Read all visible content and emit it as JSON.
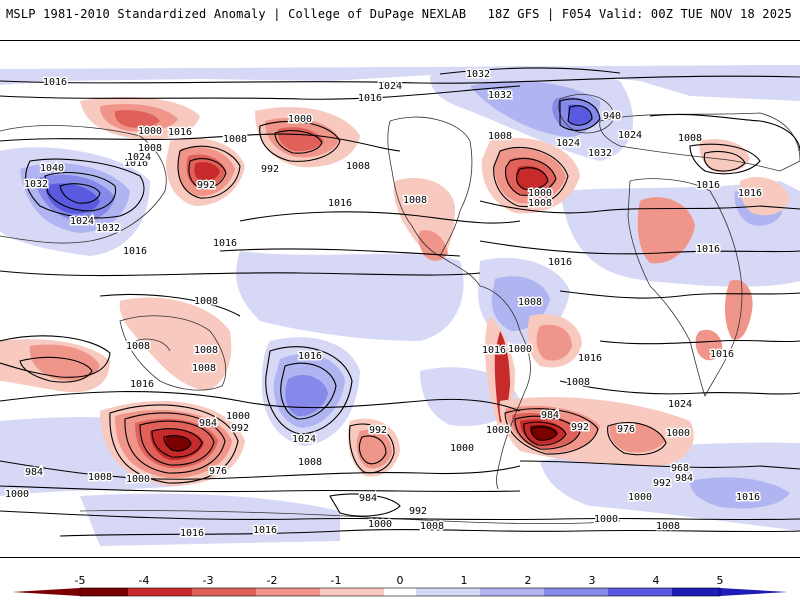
{
  "header": {
    "title": "MSLP 1981-2010 Standardized Anomaly | College of DuPage NEXLAB",
    "run_info": "18Z GFS | F054 Valid: 00Z TUE NOV 18 2025"
  },
  "colors": {
    "neg5": "#7a0000",
    "neg4": "#c62a2a",
    "neg3": "#e0605a",
    "neg2": "#f0958a",
    "neg1": "#f8c9be",
    "zero": "#ffffff",
    "pos1": "#d6d8f6",
    "pos2": "#b0b4f0",
    "pos3": "#8688ea",
    "pos4": "#5a5ae0",
    "pos5": "#1d1db8"
  },
  "colorbar": {
    "ticks": [
      "-5",
      "-4",
      "-3",
      "-2",
      "-1",
      "0",
      "1",
      "2",
      "3",
      "4",
      "5"
    ]
  },
  "isobar_labels": [
    {
      "text": "1016"
    },
    {
      "text": "1024"
    },
    {
      "text": "1016"
    },
    {
      "text": "1032"
    },
    {
      "text": "1032"
    },
    {
      "text": "1000"
    },
    {
      "text": "1016"
    },
    {
      "text": "1008"
    },
    {
      "text": "1000"
    },
    {
      "text": "1016"
    },
    {
      "text": "1024"
    },
    {
      "text": "1008"
    },
    {
      "text": "1040"
    },
    {
      "text": "1032"
    },
    {
      "text": "1024"
    },
    {
      "text": "1032"
    },
    {
      "text": "992"
    },
    {
      "text": "992"
    },
    {
      "text": "1008"
    },
    {
      "text": "1016"
    },
    {
      "text": "1016"
    },
    {
      "text": "1008"
    },
    {
      "text": "1008"
    },
    {
      "text": "1000"
    },
    {
      "text": "1008"
    },
    {
      "text": "1024"
    },
    {
      "text": "940"
    },
    {
      "text": "1032"
    },
    {
      "text": "1024"
    },
    {
      "text": "1016"
    },
    {
      "text": "1016"
    },
    {
      "text": "1016"
    },
    {
      "text": "1016"
    },
    {
      "text": "1016"
    },
    {
      "text": "1008"
    },
    {
      "text": "1008"
    },
    {
      "text": "1008"
    },
    {
      "text": "1016"
    },
    {
      "text": "1016"
    },
    {
      "text": "1016"
    },
    {
      "text": "1016"
    },
    {
      "text": "1008"
    },
    {
      "text": "1008"
    },
    {
      "text": "1016"
    },
    {
      "text": "1024"
    },
    {
      "text": "1008"
    },
    {
      "text": "984"
    },
    {
      "text": "1000"
    },
    {
      "text": "992"
    },
    {
      "text": "976"
    },
    {
      "text": "1024"
    },
    {
      "text": "1008"
    },
    {
      "text": "992"
    },
    {
      "text": "1000"
    },
    {
      "text": "1008"
    },
    {
      "text": "984"
    },
    {
      "text": "992"
    },
    {
      "text": "976"
    },
    {
      "text": "1000"
    },
    {
      "text": "968"
    },
    {
      "text": "984"
    },
    {
      "text": "992"
    },
    {
      "text": "984"
    },
    {
      "text": "1008"
    },
    {
      "text": "1000"
    },
    {
      "text": "984"
    },
    {
      "text": "1000"
    },
    {
      "text": "1000"
    },
    {
      "text": "1016"
    },
    {
      "text": "1016"
    },
    {
      "text": "1016"
    },
    {
      "text": "1000"
    },
    {
      "text": "1008"
    },
    {
      "text": "992"
    },
    {
      "text": "1000"
    },
    {
      "text": "1008"
    },
    {
      "text": "1008"
    },
    {
      "text": "1000"
    }
  ]
}
